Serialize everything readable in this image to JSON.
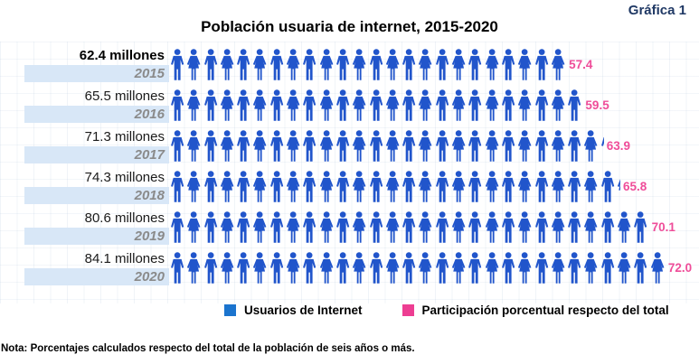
{
  "header": {
    "figure_label": "Gráfica 1",
    "title": "Población usuaria de internet, 2015-2020"
  },
  "chart_data": {
    "type": "bar",
    "variant": "pictogram",
    "title": "Población usuaria de internet, 2015-2020",
    "categories": [
      "2015",
      "2016",
      "2017",
      "2018",
      "2019",
      "2020"
    ],
    "series": [
      {
        "name": "Usuarios de Internet",
        "unit": "millones",
        "values": [
          62.4,
          65.5,
          71.3,
          74.3,
          80.6,
          84.1
        ]
      },
      {
        "name": "Participación porcentual respecto del total",
        "unit": "%",
        "values": [
          57.4,
          59.5,
          63.9,
          65.8,
          70.1,
          72.0
        ]
      }
    ],
    "legend_position": "bottom",
    "grid": false,
    "note": "Nota: Porcentajes calculados respecto del total de la población de seis años o más."
  },
  "rows": [
    {
      "year": "2015",
      "users_label": "62.4 millones",
      "value_label": "57.4",
      "icon_count": 24,
      "partial_icon": false,
      "bold_users_label": true
    },
    {
      "year": "2016",
      "users_label": "65.5 millones",
      "value_label": "59.5",
      "icon_count": 25,
      "partial_icon": false,
      "bold_users_label": false
    },
    {
      "year": "2017",
      "users_label": "71.3 millones",
      "value_label": "63.9",
      "icon_count": 26,
      "partial_icon": true,
      "bold_users_label": false
    },
    {
      "year": "2018",
      "users_label": "74.3 millones",
      "value_label": "65.8",
      "icon_count": 27,
      "partial_icon": true,
      "bold_users_label": false
    },
    {
      "year": "2019",
      "users_label": "80.6 millones",
      "value_label": "70.1",
      "icon_count": 29,
      "partial_icon": false,
      "bold_users_label": false
    },
    {
      "year": "2020",
      "users_label": "84.1 millones",
      "value_label": "72.0",
      "icon_count": 30,
      "partial_icon": false,
      "bold_users_label": false
    }
  ],
  "legend": {
    "users_label": "Usuarios de Internet",
    "share_label": "Participación porcentual respecto del total"
  },
  "note": "Nota: Porcentajes calculados respecto del total de la población de seis años o más.",
  "icons": {
    "male": "male-person-icon",
    "female": "female-person-icon"
  },
  "colors": {
    "icon_blue": "#2155CB",
    "legend_blue": "#1B74CE",
    "accent_pink": "#ED3E92",
    "value_pink": "#EF4D99",
    "band_blue": "#D8E7F7",
    "year_gray": "#8A8A8A",
    "figure_navy": "#1F3864"
  }
}
